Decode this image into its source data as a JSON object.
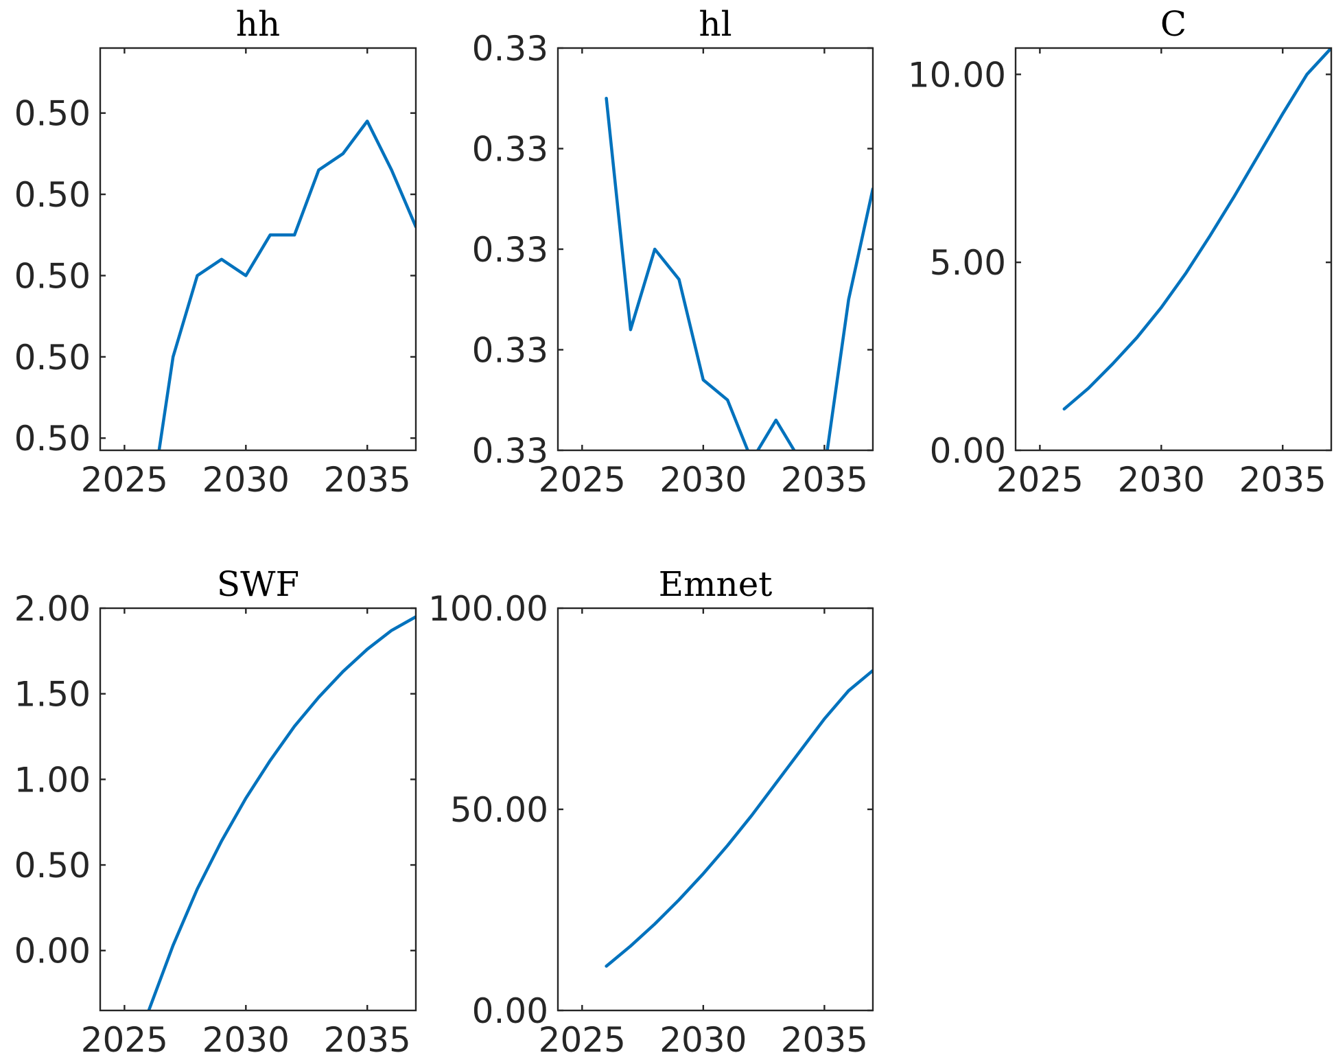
{
  "chart_data": [
    {
      "type": "line",
      "title": "hh",
      "x": [
        2026,
        2027,
        2028,
        2029,
        2030,
        2031,
        2032,
        2033,
        2034,
        2035,
        2036,
        2037
      ],
      "series": [
        {
          "values": [
            0.49999,
            0.499992,
            0.499993,
            0.4999932,
            0.499993,
            0.4999935,
            0.4999935,
            0.4999943,
            0.4999945,
            0.4999949,
            0.4999943,
            0.4999936
          ]
        }
      ],
      "xlim": [
        2024,
        2037
      ],
      "ylim": [
        0.49999085,
        0.4999958
      ],
      "xticks": [
        2025,
        2030,
        2035
      ],
      "xtick_labels": [
        "2025",
        "2030",
        "2035"
      ],
      "yticks": [
        0.499991,
        0.499992,
        0.499993,
        0.499994,
        0.499995
      ],
      "ytick_labels": [
        "0.50",
        "0.50",
        "0.50",
        "0.50",
        "0.50"
      ],
      "color": "#0072BD"
    },
    {
      "type": "line",
      "title": "hl",
      "x": [
        2026,
        2027,
        2028,
        2029,
        2030,
        2031,
        2032,
        2033,
        2034,
        2035,
        2036,
        2037
      ],
      "series": [
        {
          "values": [
            0.3333285,
            0.3333262,
            0.333327,
            0.3333267,
            0.3333257,
            0.3333255,
            0.3333249,
            0.3333253,
            0.3333249,
            0.3333248,
            0.3333265,
            0.3333276
          ]
        }
      ],
      "xlim": [
        2024,
        2037
      ],
      "ylim": [
        0.333325,
        0.333329
      ],
      "xticks": [
        2025,
        2030,
        2035
      ],
      "xtick_labels": [
        "2025",
        "2030",
        "2035"
      ],
      "yticks": [
        0.333325,
        0.333326,
        0.333327,
        0.333328,
        0.333329
      ],
      "ytick_labels": [
        "0.33",
        "0.33",
        "0.33",
        "0.33",
        "0.33"
      ],
      "color": "#0072BD"
    },
    {
      "type": "line",
      "title": "C",
      "x": [
        2026,
        2027,
        2028,
        2029,
        2030,
        2031,
        2032,
        2033,
        2034,
        2035,
        2036,
        2037
      ],
      "series": [
        {
          "values": [
            1.1,
            1.65,
            2.3,
            3.0,
            3.8,
            4.7,
            5.7,
            6.75,
            7.85,
            8.95,
            10.0,
            10.7
          ]
        }
      ],
      "xlim": [
        2024,
        2037
      ],
      "ylim": [
        0,
        10.7
      ],
      "xticks": [
        2025,
        2030,
        2035
      ],
      "xtick_labels": [
        "2025",
        "2030",
        "2035"
      ],
      "yticks": [
        0,
        5,
        10
      ],
      "ytick_labels": [
        "0.00",
        "5.00",
        "10.00"
      ],
      "color": "#0072BD"
    },
    {
      "type": "line",
      "title": "SWF",
      "x": [
        2026,
        2027,
        2028,
        2029,
        2030,
        2031,
        2032,
        2033,
        2034,
        2035,
        2036,
        2037
      ],
      "series": [
        {
          "values": [
            -0.35,
            0.03,
            0.36,
            0.64,
            0.89,
            1.11,
            1.31,
            1.48,
            1.63,
            1.76,
            1.87,
            1.95
          ]
        }
      ],
      "xlim": [
        2024,
        2037
      ],
      "ylim": [
        -0.35,
        2.0
      ],
      "xticks": [
        2025,
        2030,
        2035
      ],
      "xtick_labels": [
        "2025",
        "2030",
        "2035"
      ],
      "yticks": [
        0,
        0.5,
        1.0,
        1.5,
        2.0
      ],
      "ytick_labels": [
        "0.00",
        "0.50",
        "1.00",
        "1.50",
        "2.00"
      ],
      "color": "#0072BD"
    },
    {
      "type": "line",
      "title": "Emnet",
      "x": [
        2026,
        2027,
        2028,
        2029,
        2030,
        2031,
        2032,
        2033,
        2034,
        2035,
        2036,
        2037
      ],
      "series": [
        {
          "values": [
            11,
            16,
            21.5,
            27.5,
            34,
            41,
            48.5,
            56.5,
            64.5,
            72.5,
            79.5,
            84.5
          ]
        }
      ],
      "xlim": [
        2024,
        2037
      ],
      "ylim": [
        0,
        100
      ],
      "xticks": [
        2025,
        2030,
        2035
      ],
      "xtick_labels": [
        "2025",
        "2030",
        "2035"
      ],
      "yticks": [
        0,
        50,
        100
      ],
      "ytick_labels": [
        "0.00",
        "50.00",
        "100.00"
      ],
      "color": "#0072BD"
    }
  ]
}
